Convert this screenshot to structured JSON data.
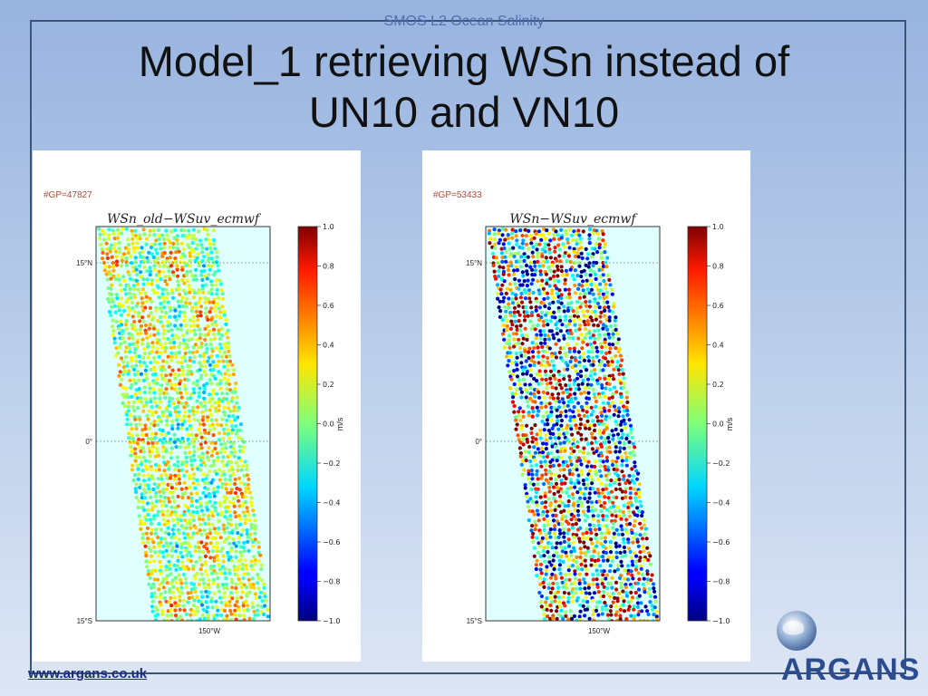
{
  "slide": {
    "header": "SMOS L2 Ocean Salinity",
    "title_line1": "Model_1 retrieving WSn instead of",
    "title_line2": "UN10 and VN10",
    "footer_link": "www.argans.co.uk",
    "logo_text": "ARGANS",
    "colors": {
      "frame": "#3b5578",
      "title": "#111111",
      "link": "#1a2c7a",
      "logo": "#2b4c8f",
      "gp_label": "#b04a3a"
    }
  },
  "chart_data": [
    {
      "type": "heatmap",
      "title": "WSn_old−WSuv_ecmwf",
      "annotation": "#GP=47827",
      "y_ticks": [
        "15°N",
        "0°",
        "15°S"
      ],
      "x_ticks": [
        "150°W"
      ],
      "colorbar": {
        "label": "m/s",
        "ticks": [
          "1.0",
          "0.8",
          "0.6",
          "0.4",
          "0.2",
          "0.0",
          "−0.2",
          "−0.4",
          "−0.6",
          "−0.8",
          "−1.0"
        ],
        "range": [
          -1.0,
          1.0
        ],
        "colormap": "jet"
      },
      "pattern": {
        "bias": 0.1,
        "spread": 0.35,
        "seed": 11
      }
    },
    {
      "type": "heatmap",
      "title": "WSn−WSuv_ecmwf",
      "annotation": "#GP=53433",
      "y_ticks": [
        "15°N",
        "0°",
        "15°S"
      ],
      "x_ticks": [
        "150°W"
      ],
      "colorbar": {
        "label": "m/s",
        "ticks": [
          "1.0",
          "0.8",
          "0.6",
          "0.4",
          "0.2",
          "0.0",
          "−0.2",
          "−0.4",
          "−0.6",
          "−0.8",
          "−1.0"
        ],
        "range": [
          -1.0,
          1.0
        ],
        "colormap": "jet"
      },
      "pattern": {
        "bias": 0.0,
        "spread": 0.95,
        "seed": 29
      }
    }
  ]
}
